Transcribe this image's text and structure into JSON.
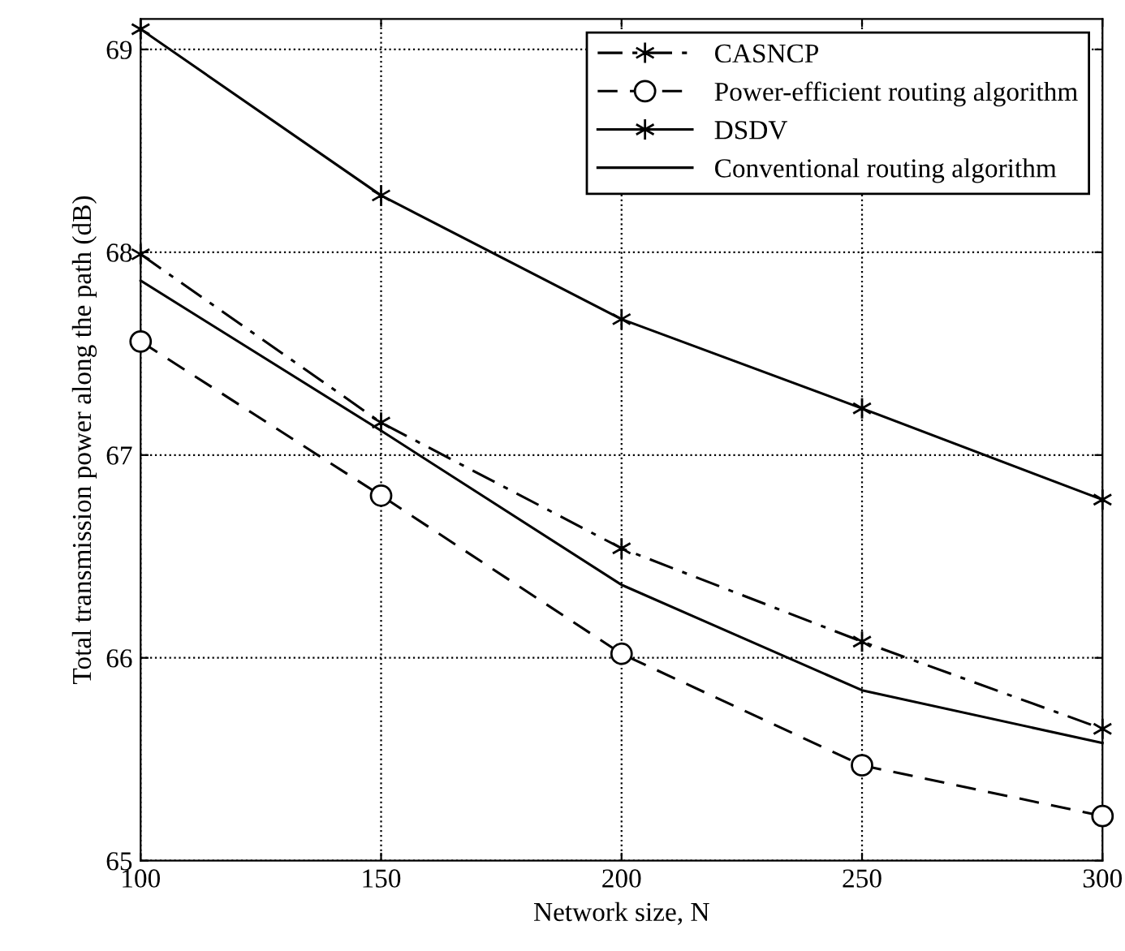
{
  "chart_data": {
    "type": "line",
    "xlabel": "Network size, N",
    "ylabel": "Total transmission power along the path (dB)",
    "x": [
      100,
      150,
      200,
      250,
      300
    ],
    "series": [
      {
        "name": "CASNCP",
        "color": "#000000",
        "marker": "cross",
        "line_style": "dashdot",
        "values": [
          67.99,
          67.16,
          66.54,
          66.08,
          65.65
        ]
      },
      {
        "name": "Power-efficient routing algorithm",
        "color": "#000000",
        "marker": "circle",
        "line_style": "dashed",
        "values": [
          67.56,
          66.8,
          66.02,
          65.47,
          65.22
        ]
      },
      {
        "name": "DSDV",
        "color": "#000000",
        "marker": "cross",
        "line_style": "solid",
        "values": [
          69.1,
          68.28,
          67.67,
          67.23,
          66.78
        ]
      },
      {
        "name": "Conventional routing algorithm",
        "color": "#000000",
        "marker": "none",
        "line_style": "solid",
        "values": [
          67.86,
          67.12,
          66.36,
          65.84,
          65.58
        ]
      }
    ],
    "xlim": [
      100,
      300
    ],
    "xticks": [
      100,
      150,
      200,
      250,
      300
    ],
    "ylim": [
      65,
      69.15
    ],
    "yticks": [
      65,
      66,
      67,
      68,
      69
    ],
    "grid": true,
    "legend": "top right"
  }
}
